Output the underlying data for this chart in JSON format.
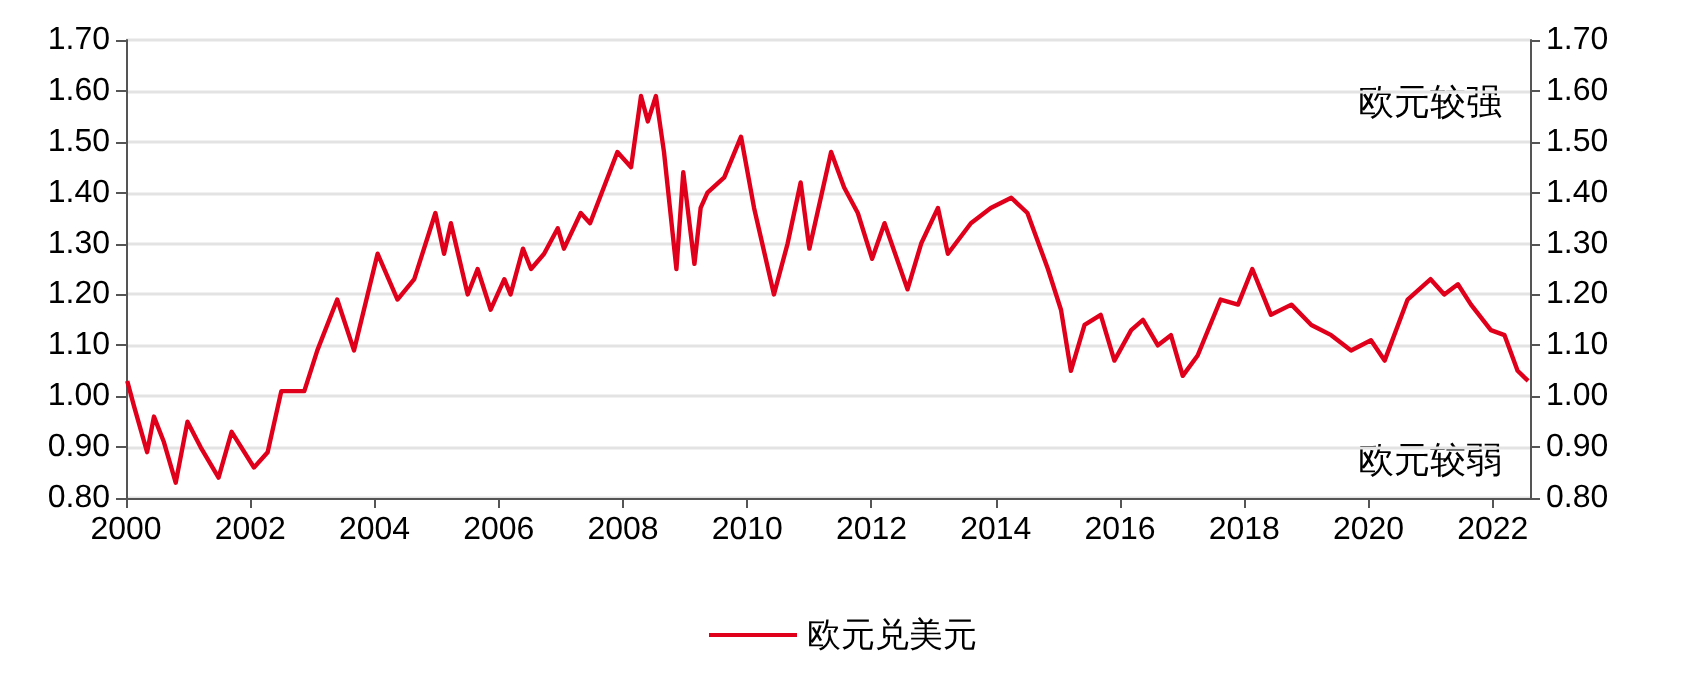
{
  "chart_data": {
    "type": "line",
    "x": [
      2000.02,
      2000.13,
      2000.34,
      2000.45,
      2000.61,
      2000.8,
      2000.99,
      2001.2,
      2001.49,
      2001.7,
      2002.06,
      2002.28,
      2002.5,
      2002.87,
      2003.08,
      2003.4,
      2003.67,
      2004.05,
      2004.37,
      2004.64,
      2004.98,
      2005.12,
      2005.23,
      2005.5,
      2005.66,
      2005.87,
      2006.09,
      2006.19,
      2006.39,
      2006.52,
      2006.73,
      2006.95,
      2007.05,
      2007.32,
      2007.47,
      2007.91,
      2008.13,
      2008.29,
      2008.4,
      2008.53,
      2008.66,
      2008.86,
      2008.97,
      2009.15,
      2009.25,
      2009.36,
      2009.63,
      2009.9,
      2010.11,
      2010.43,
      2010.65,
      2010.86,
      2011.0,
      2011.35,
      2011.56,
      2011.78,
      2012.01,
      2012.21,
      2012.58,
      2012.8,
      2013.07,
      2013.23,
      2013.6,
      2013.92,
      2014.25,
      2014.51,
      2014.84,
      2015.05,
      2015.21,
      2015.43,
      2015.69,
      2015.91,
      2016.18,
      2016.37,
      2016.61,
      2016.82,
      2017.01,
      2017.25,
      2017.62,
      2017.9,
      2018.13,
      2018.43,
      2018.76,
      2019.08,
      2019.4,
      2019.72,
      2020.04,
      2020.26,
      2020.63,
      2021.0,
      2021.22,
      2021.44,
      2021.65,
      2021.97,
      2022.19,
      2022.4,
      2022.57
    ],
    "series": [
      {
        "name": "欧元兑美元",
        "color": "#e0001b",
        "values": [
          1.03,
          0.98,
          0.89,
          0.96,
          0.91,
          0.83,
          0.95,
          0.9,
          0.84,
          0.93,
          0.86,
          0.89,
          1.01,
          1.01,
          1.09,
          1.19,
          1.09,
          1.28,
          1.19,
          1.23,
          1.36,
          1.28,
          1.34,
          1.2,
          1.25,
          1.17,
          1.23,
          1.2,
          1.29,
          1.25,
          1.28,
          1.33,
          1.29,
          1.36,
          1.34,
          1.48,
          1.45,
          1.59,
          1.54,
          1.59,
          1.48,
          1.25,
          1.44,
          1.26,
          1.37,
          1.4,
          1.43,
          1.51,
          1.37,
          1.2,
          1.3,
          1.42,
          1.29,
          1.48,
          1.41,
          1.36,
          1.27,
          1.34,
          1.21,
          1.3,
          1.37,
          1.28,
          1.34,
          1.37,
          1.39,
          1.36,
          1.25,
          1.17,
          1.05,
          1.14,
          1.16,
          1.07,
          1.13,
          1.15,
          1.1,
          1.12,
          1.04,
          1.08,
          1.19,
          1.18,
          1.25,
          1.16,
          1.18,
          1.14,
          1.12,
          1.09,
          1.11,
          1.07,
          1.19,
          1.23,
          1.2,
          1.22,
          1.18,
          1.13,
          1.12,
          1.05,
          1.03
        ]
      }
    ],
    "xlim": [
      2000,
      2022.6
    ],
    "xticks": [
      2000,
      2002,
      2004,
      2006,
      2008,
      2010,
      2012,
      2014,
      2016,
      2018,
      2020,
      2022
    ],
    "ylim": [
      0.8,
      1.7
    ],
    "yticks": [
      {
        "value": 0.8,
        "label": "0.80"
      },
      {
        "value": 0.9,
        "label": "0.90"
      },
      {
        "value": 1.0,
        "label": "1.00"
      },
      {
        "value": 1.1,
        "label": "1.10"
      },
      {
        "value": 1.2,
        "label": "1.20"
      },
      {
        "value": 1.3,
        "label": "1.30"
      },
      {
        "value": 1.4,
        "label": "1.40"
      },
      {
        "value": 1.5,
        "label": "1.50"
      },
      {
        "value": 1.6,
        "label": "1.60"
      },
      {
        "value": 1.7,
        "label": "1.70"
      }
    ],
    "y2lim": [
      0.8,
      1.7
    ],
    "y2ticks": [
      {
        "value": 0.8,
        "label": "0.80"
      },
      {
        "value": 0.9,
        "label": "0.90"
      },
      {
        "value": 1.0,
        "label": "1.00"
      },
      {
        "value": 1.1,
        "label": "1.10"
      },
      {
        "value": 1.2,
        "label": "1.20"
      },
      {
        "value": 1.3,
        "label": "1.30"
      },
      {
        "value": 1.4,
        "label": "1.40"
      },
      {
        "value": 1.5,
        "label": "1.50"
      },
      {
        "value": 1.6,
        "label": "1.60"
      },
      {
        "value": 1.7,
        "label": "1.70"
      }
    ],
    "annotations": [
      "欧元较强",
      "欧元较弱"
    ],
    "grid": "y",
    "legend": "bottom",
    "marker": "none",
    "line_style": "solid"
  }
}
